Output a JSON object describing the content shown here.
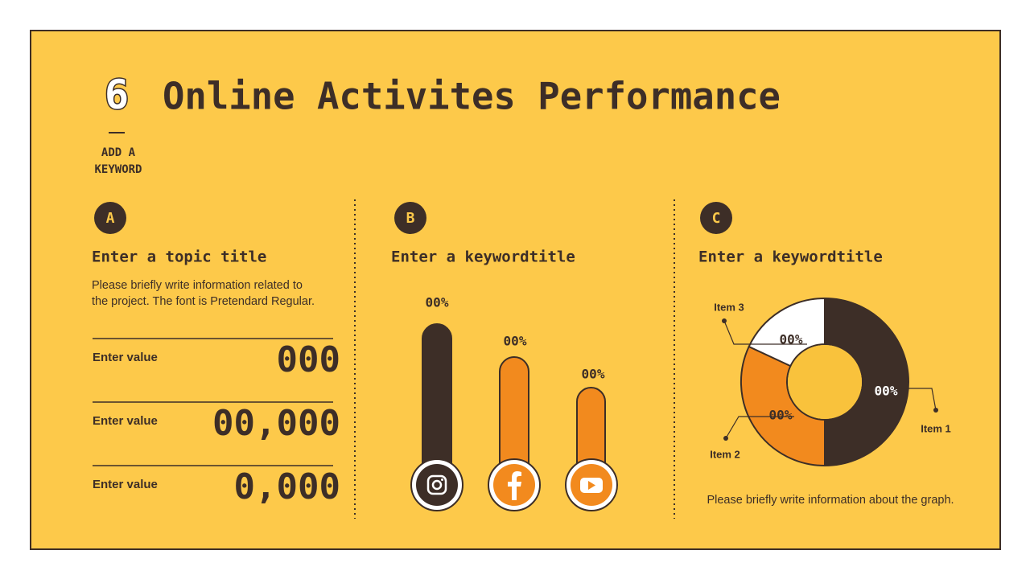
{
  "header": {
    "number": "6",
    "title": "Online Activites Performance",
    "keyword": [
      "ADD A",
      "KEYWORD"
    ]
  },
  "sections": [
    {
      "badge": "A",
      "title": "Enter a topic title",
      "description": [
        "Please briefly write information related to",
        "the project. The font is Pretendard Regular."
      ],
      "rows": [
        {
          "label": "Enter value",
          "value": "000"
        },
        {
          "label": "Enter value",
          "value": "00,000"
        },
        {
          "label": "Enter value",
          "value": "0,000"
        }
      ]
    },
    {
      "badge": "B",
      "title": "Enter a keywordtitle",
      "bar_labels": [
        "00%",
        "00%",
        "00%"
      ]
    },
    {
      "badge": "C",
      "title": "Enter a keywordtitle",
      "segment_labels": [
        "00%",
        "00%",
        "00%"
      ],
      "items": [
        "Item 1",
        "Item 2",
        "Item 3"
      ],
      "caption": "Please briefly write information about the graph."
    }
  ]
}
